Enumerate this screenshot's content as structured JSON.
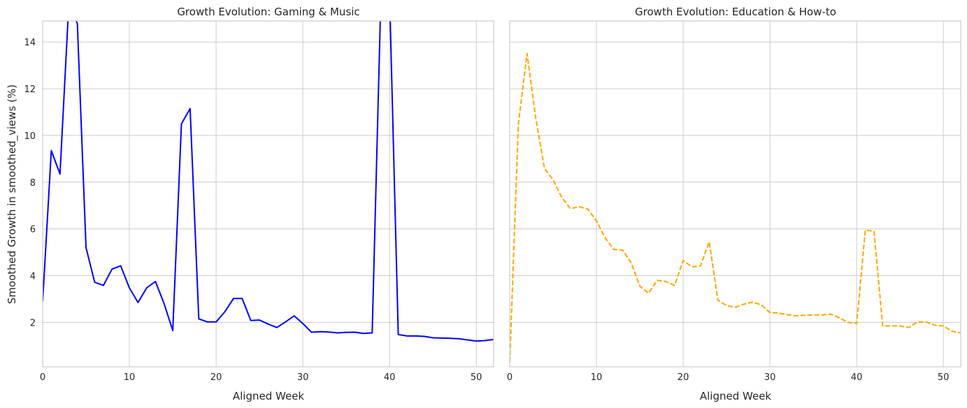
{
  "chart_data": [
    {
      "type": "line",
      "title": "Growth Evolution: Gaming & Music",
      "xlabel": "Aligned Week",
      "ylabel": "Smoothed Growth in smoothed_views (%)",
      "xlim": [
        0,
        52
      ],
      "ylim": [
        0.1,
        14.9
      ],
      "xticks": [
        0,
        10,
        20,
        30,
        40,
        50
      ],
      "yticks": [
        2,
        4,
        6,
        8,
        10,
        12,
        14
      ],
      "grid": true,
      "series": [
        {
          "color": "#0000ff",
          "dash": "solid",
          "x": [
            0,
            1,
            2,
            3,
            4,
            5,
            6,
            7,
            8,
            9,
            10,
            11,
            12,
            13,
            14,
            15,
            16,
            17,
            18,
            19,
            20,
            21,
            22,
            23,
            24,
            25,
            26,
            27,
            28,
            29,
            30,
            31,
            32,
            33,
            34,
            35,
            36,
            37,
            38,
            39,
            40,
            41,
            42,
            43,
            44,
            45,
            46,
            47,
            48,
            49,
            50,
            51,
            52
          ],
          "y": [
            2.9,
            9.35,
            8.35,
            15.5,
            14.8,
            5.2,
            3.72,
            3.58,
            4.28,
            4.42,
            3.48,
            2.85,
            3.48,
            3.75,
            2.8,
            1.65,
            10.5,
            11.15,
            2.15,
            2.02,
            2.02,
            2.45,
            3.02,
            3.02,
            2.08,
            2.1,
            1.93,
            1.78,
            2.02,
            2.28,
            1.95,
            1.58,
            1.6,
            1.59,
            1.55,
            1.57,
            1.58,
            1.53,
            1.55,
            16.0,
            16.0,
            1.48,
            1.42,
            1.42,
            1.4,
            1.34,
            1.33,
            1.32,
            1.3,
            1.25,
            1.2,
            1.22,
            1.27
          ]
        }
      ]
    },
    {
      "type": "line",
      "title": "Growth Evolution: Education & How-to",
      "xlabel": "Aligned Week",
      "ylabel": "",
      "xlim": [
        0,
        52
      ],
      "ylim": [
        0.1,
        14.9
      ],
      "xticks": [
        0,
        10,
        20,
        30,
        40,
        50
      ],
      "yticks": [
        2,
        4,
        6,
        8,
        10,
        12,
        14
      ],
      "grid": true,
      "series": [
        {
          "color": "#ffa500",
          "dash": "dashed",
          "x": [
            0,
            1,
            2,
            3,
            4,
            5,
            6,
            7,
            8,
            9,
            10,
            11,
            12,
            13,
            14,
            15,
            16,
            17,
            18,
            19,
            20,
            21,
            22,
            23,
            24,
            25,
            26,
            27,
            28,
            29,
            30,
            31,
            32,
            33,
            34,
            35,
            36,
            37,
            38,
            39,
            40,
            41,
            42,
            43,
            44,
            45,
            46,
            47,
            48,
            49,
            50,
            51,
            52
          ],
          "y": [
            0.3,
            10.5,
            13.5,
            10.75,
            8.6,
            8.1,
            7.35,
            6.87,
            6.95,
            6.85,
            6.35,
            5.62,
            5.12,
            5.1,
            4.55,
            3.55,
            3.25,
            3.8,
            3.75,
            3.58,
            4.65,
            4.38,
            4.42,
            5.45,
            2.95,
            2.72,
            2.65,
            2.78,
            2.87,
            2.75,
            2.42,
            2.4,
            2.33,
            2.28,
            2.3,
            2.32,
            2.32,
            2.35,
            2.2,
            2.0,
            1.95,
            5.95,
            5.9,
            1.85,
            1.85,
            1.85,
            1.78,
            2.02,
            2.02,
            1.88,
            1.85,
            1.62,
            1.55
          ]
        }
      ]
    }
  ]
}
